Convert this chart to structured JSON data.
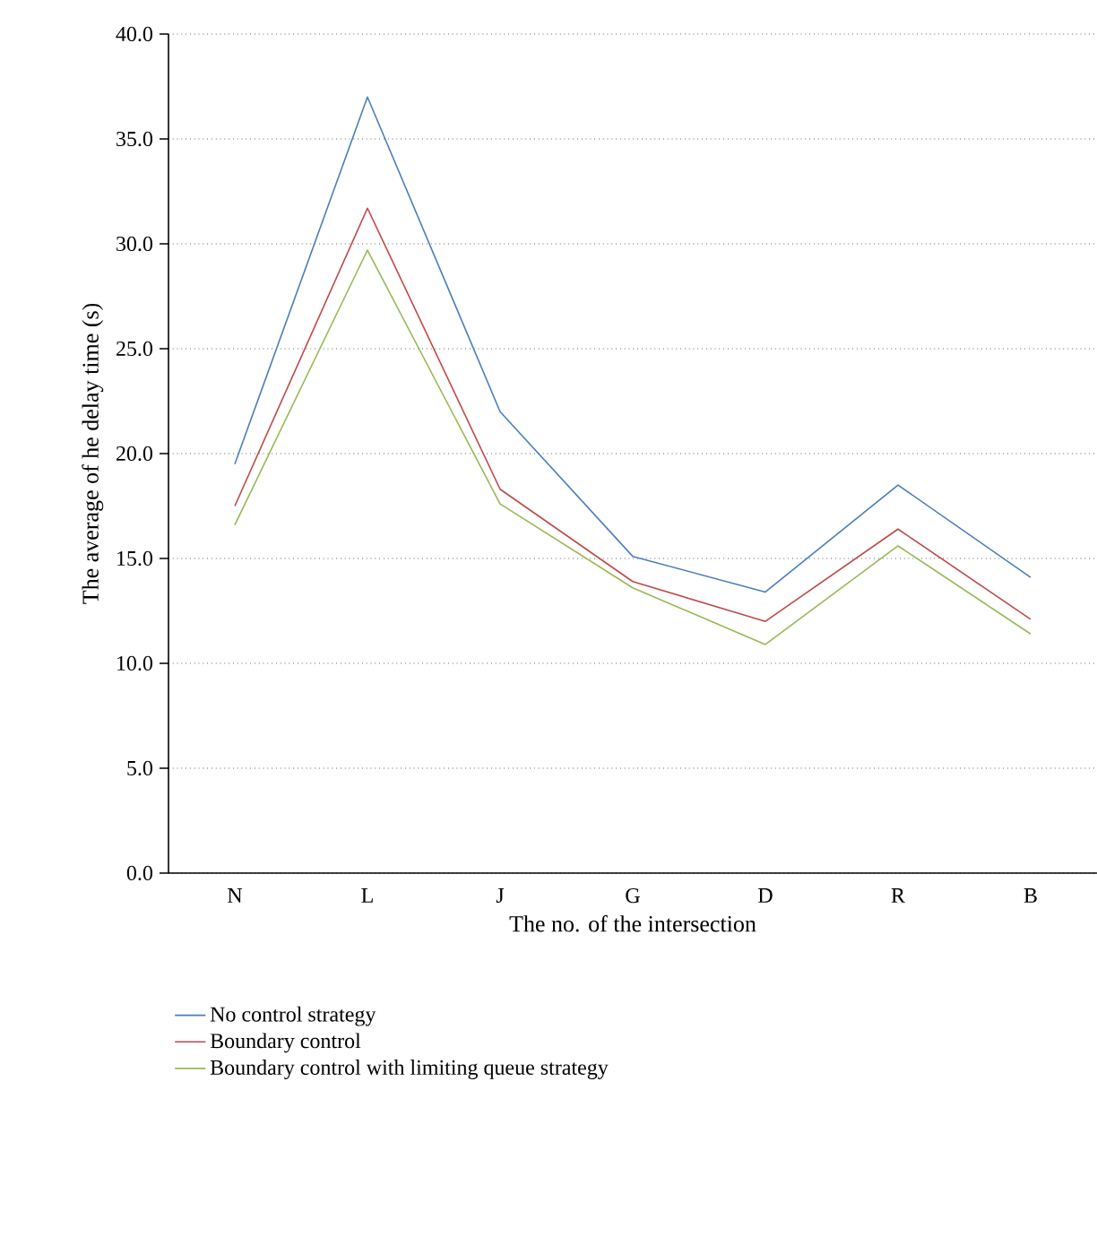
{
  "chart_data": {
    "type": "line",
    "xlabel": "The no. of the intersection",
    "ylabel": "The average of he delay time (s)",
    "categories": [
      "N",
      "L",
      "J",
      "G",
      "D",
      "R",
      "B"
    ],
    "series": [
      {
        "name": "No control strategy",
        "color": "#4a7ebb",
        "values": [
          19.5,
          37.0,
          22.0,
          15.1,
          13.4,
          18.5,
          14.1
        ]
      },
      {
        "name": "Boundary control",
        "color": "#be4b48",
        "values": [
          17.5,
          31.7,
          18.3,
          13.9,
          12.0,
          16.4,
          12.1
        ]
      },
      {
        "name": "Boundary control with limiting queue strategy",
        "color": "#98b954",
        "values": [
          16.6,
          29.7,
          17.6,
          13.6,
          10.9,
          15.6,
          11.4
        ]
      }
    ],
    "ylim": [
      0,
      40
    ],
    "yticks": [
      {
        "value": 0,
        "label": "0.0"
      },
      {
        "value": 5,
        "label": "5.0"
      },
      {
        "value": 10,
        "label": "10.0"
      },
      {
        "value": 15,
        "label": "15.0"
      },
      {
        "value": 20,
        "label": "20.0"
      },
      {
        "value": 25,
        "label": "25.0"
      },
      {
        "value": 30,
        "label": "30.0"
      },
      {
        "value": 35,
        "label": "35.0"
      },
      {
        "value": 40,
        "label": "40.0"
      }
    ],
    "grid": "y",
    "legend": "bottom",
    "marker": "none",
    "line_style": "solid"
  }
}
